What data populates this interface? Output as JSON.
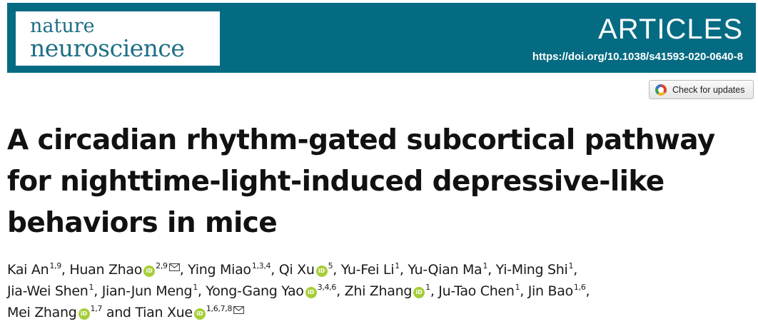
{
  "header": {
    "journal_line1": "nature",
    "journal_line2": "neuroscience",
    "section": "ARTICLES",
    "doi": "https://doi.org/10.1038/s41593-020-0640-8",
    "colors": {
      "banner": "#046b82",
      "logo_text": "#1f6f86",
      "orcid": "#a6ce39"
    }
  },
  "check_updates": {
    "label": "Check for updates",
    "icon": "crossmark-icon"
  },
  "article": {
    "title_lines": [
      "A circadian rhythm-gated subcortical pathway",
      "for nighttime-light-induced depressive-like",
      "behaviors in mice"
    ]
  },
  "authors": [
    {
      "name": "Kai An",
      "aff": "1,9",
      "orcid": false,
      "mail": false,
      "sep": ", "
    },
    {
      "name": "Huan Zhao",
      "aff": "2,9",
      "orcid": true,
      "mail": true,
      "sep": ", "
    },
    {
      "name": "Ying Miao",
      "aff": "1,3,4",
      "orcid": false,
      "mail": false,
      "sep": ", "
    },
    {
      "name": "Qi Xu",
      "aff": "5",
      "orcid": true,
      "mail": false,
      "sep": ", "
    },
    {
      "name": "Yu-Fei Li",
      "aff": "1",
      "orcid": false,
      "mail": false,
      "sep": ", "
    },
    {
      "name": "Yu-Qian Ma",
      "aff": "1",
      "orcid": false,
      "mail": false,
      "sep": ", "
    },
    {
      "name": "Yi-Ming Shi",
      "aff": "1",
      "orcid": false,
      "mail": false,
      "sep": ","
    },
    {
      "name": "Jia-Wei Shen",
      "aff": "1",
      "orcid": false,
      "mail": false,
      "sep": ", "
    },
    {
      "name": "Jian-Jun Meng",
      "aff": "1",
      "orcid": false,
      "mail": false,
      "sep": ", "
    },
    {
      "name": "Yong-Gang Yao",
      "aff": "3,4,6",
      "orcid": true,
      "mail": false,
      "sep": ", "
    },
    {
      "name": "Zhi Zhang",
      "aff": "1",
      "orcid": true,
      "mail": false,
      "sep": ", "
    },
    {
      "name": "Ju-Tao Chen",
      "aff": "1",
      "orcid": false,
      "mail": false,
      "sep": ", "
    },
    {
      "name": "Jin Bao",
      "aff": "1,6",
      "orcid": false,
      "mail": false,
      "sep": ","
    },
    {
      "name": "Mei Zhang",
      "aff": "1,7",
      "orcid": true,
      "mail": false,
      "sep": " and "
    },
    {
      "name": "Tian Xue",
      "aff": "1,6,7,8",
      "orcid": true,
      "mail": true,
      "sep": ""
    }
  ],
  "author_line_breaks": [
    7,
    13,
    15
  ],
  "icons": {
    "orcid": "orcid-icon",
    "mail": "mail-icon",
    "orcid_glyph": "iD"
  }
}
